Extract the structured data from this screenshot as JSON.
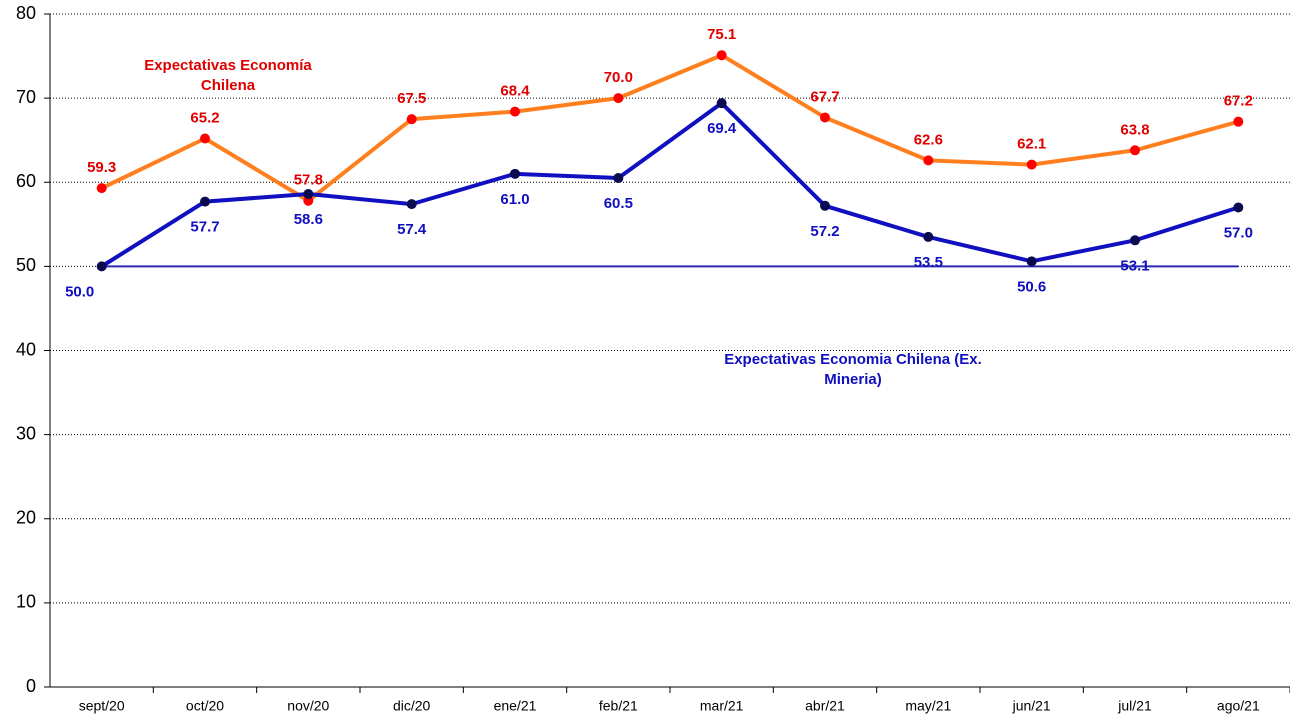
{
  "chart_data": {
    "type": "line",
    "categories": [
      "sept/20",
      "oct/20",
      "nov/20",
      "dic/20",
      "ene/21",
      "feb/21",
      "mar/21",
      "abr/21",
      "may/21",
      "jun/21",
      "jul/21",
      "ago/21"
    ],
    "series": [
      {
        "name": "Expectativas Economía Chilena",
        "color": "#ff7f1f",
        "marker_color": "#ff0000",
        "label_color": "#e00000",
        "values": [
          59.3,
          65.2,
          57.8,
          67.5,
          68.4,
          70.0,
          75.1,
          67.7,
          62.6,
          62.1,
          63.8,
          67.2
        ],
        "value_labels": [
          "59.3",
          "65.2",
          "57.8",
          "67.5",
          "68.4",
          "70.0",
          "75.1",
          "67.7",
          "62.6",
          "62.1",
          "63.8",
          "67.2"
        ]
      },
      {
        "name": "Expectativas Economia Chilena (Ex. Mineria)",
        "color": "#1010c0",
        "marker_color": "#0a0a50",
        "label_color": "#1010c0",
        "values": [
          50.0,
          57.7,
          58.6,
          57.4,
          61.0,
          60.5,
          69.4,
          57.2,
          53.5,
          50.6,
          53.1,
          57.0
        ],
        "value_labels": [
          "50.0",
          "57.7",
          "58.6",
          "57.4",
          "61.0",
          "60.5",
          "69.4",
          "57.2",
          "53.5",
          "50.6",
          "53.1",
          "57.0"
        ]
      }
    ],
    "reference_line": 50,
    "ylim": [
      0,
      80
    ],
    "yticks": [
      0,
      10,
      20,
      30,
      40,
      50,
      60,
      70,
      80
    ],
    "grid": true
  }
}
